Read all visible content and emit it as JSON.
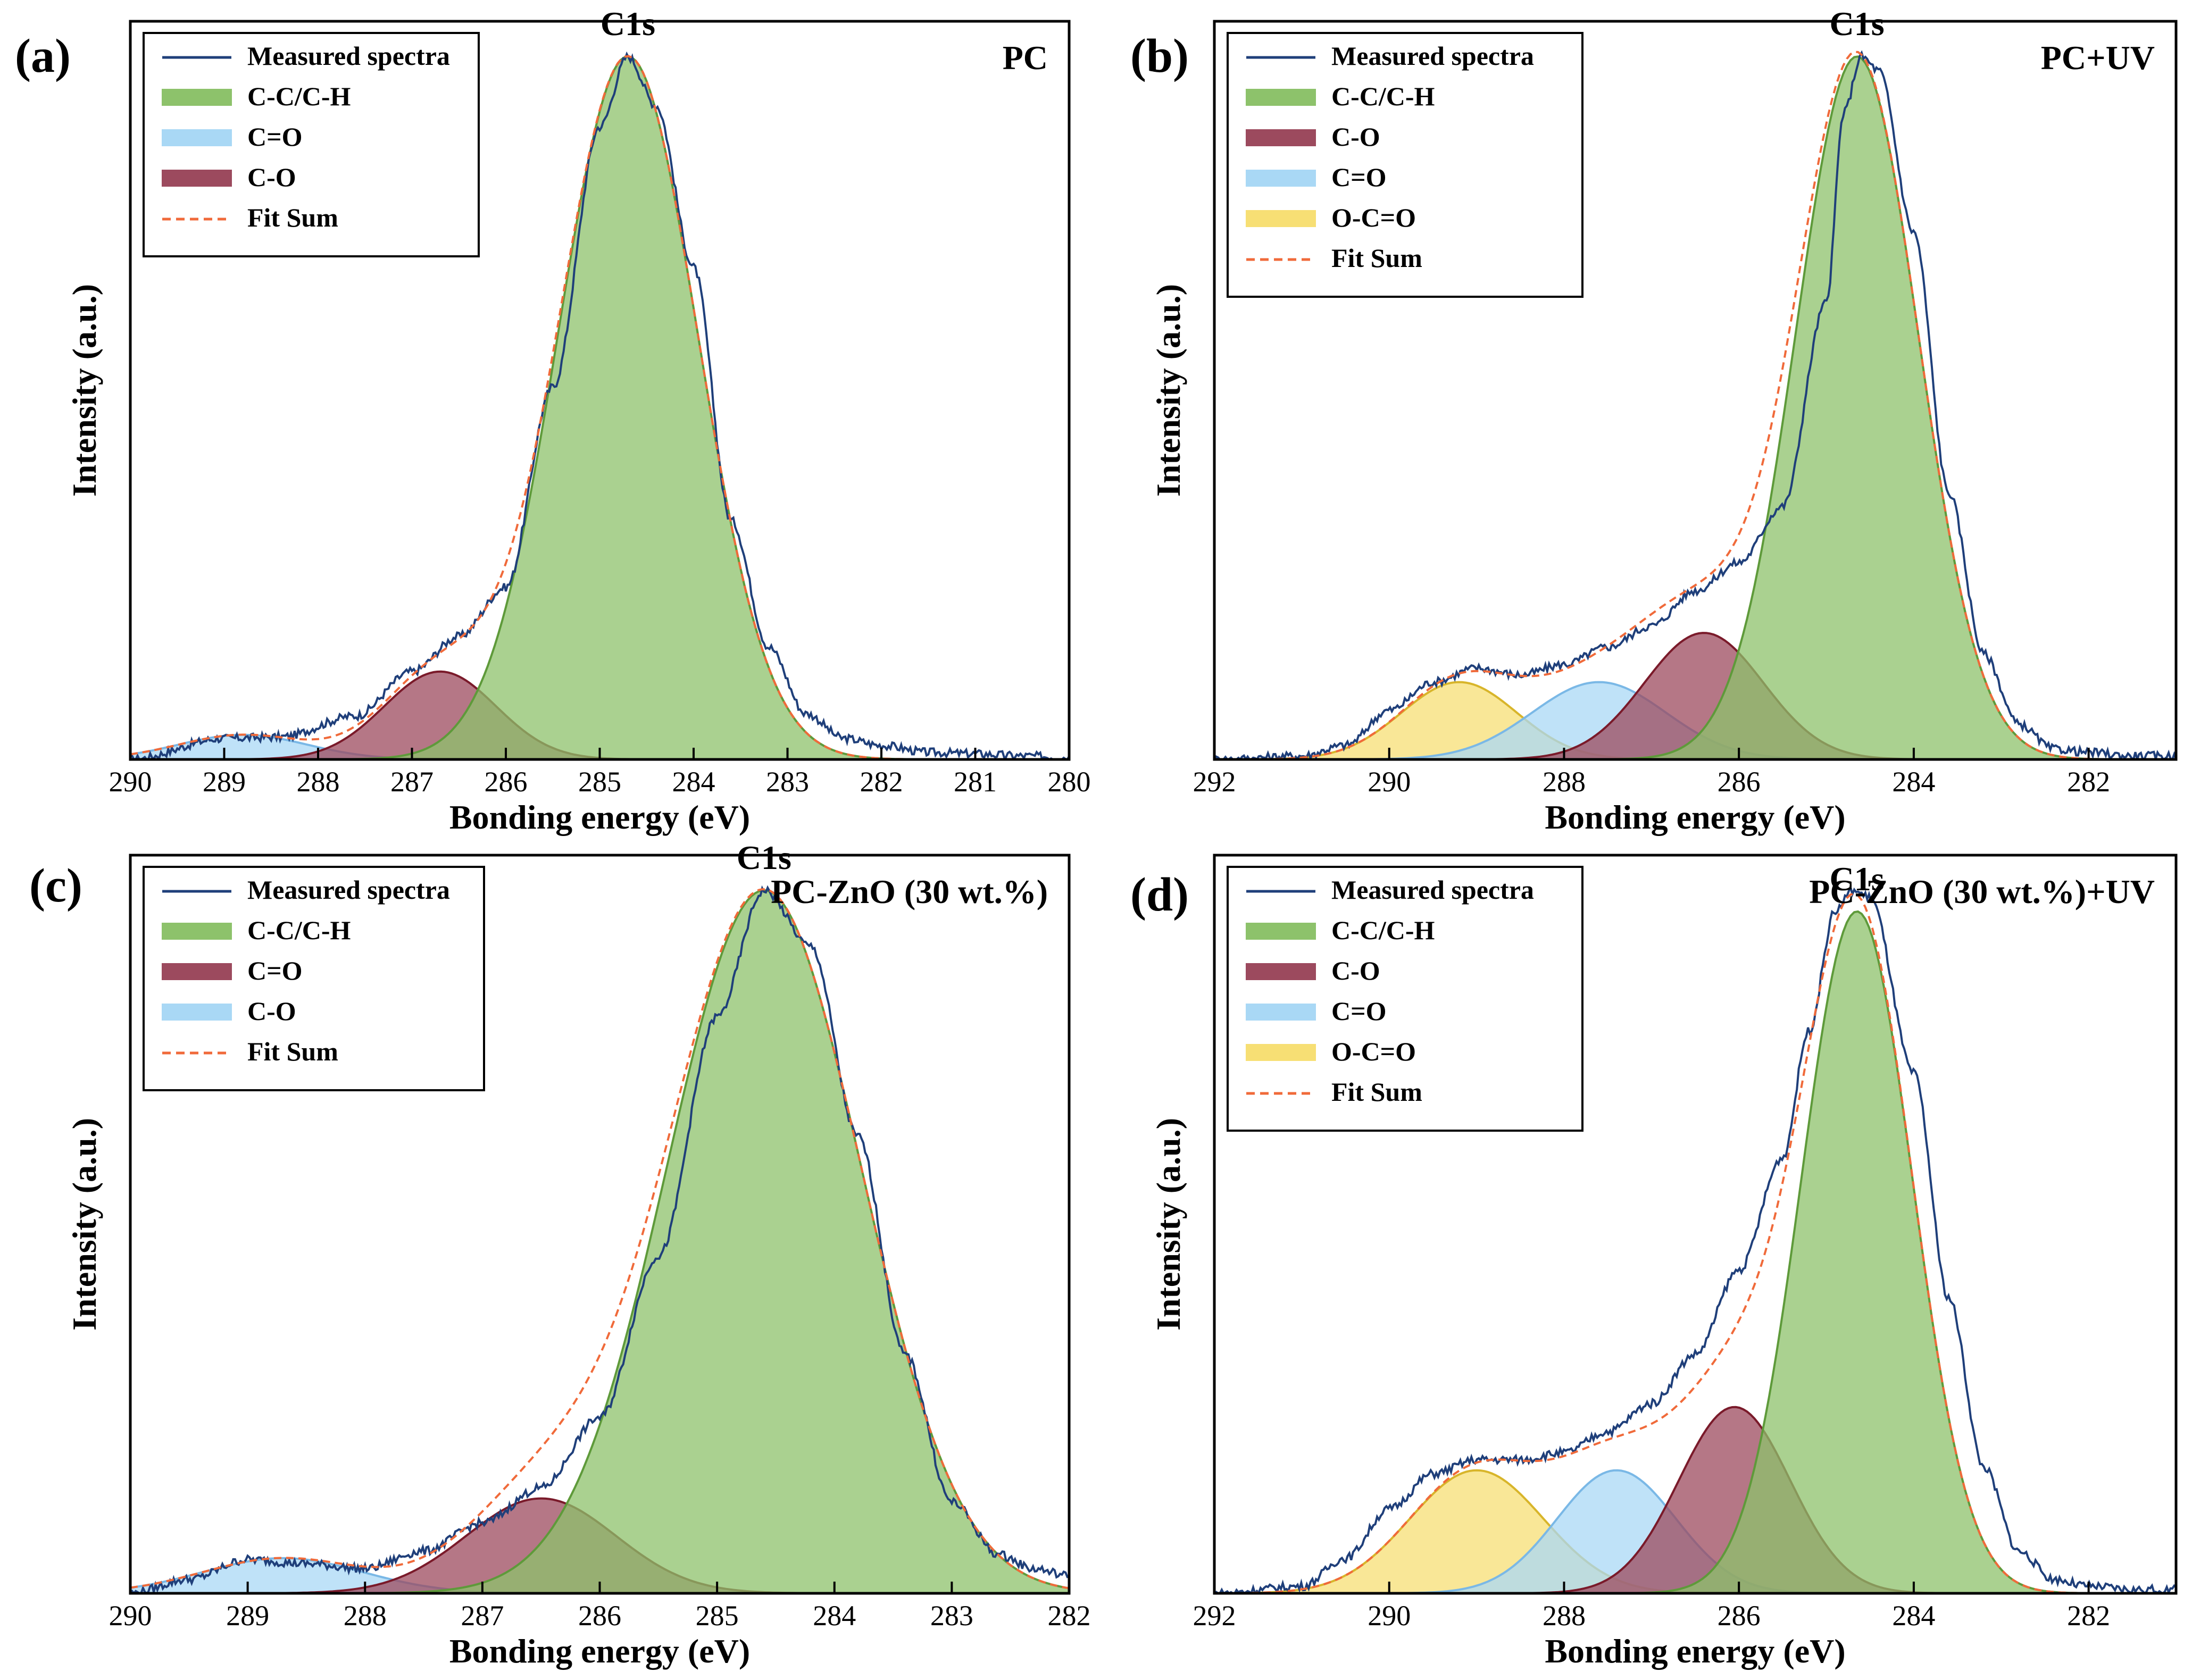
{
  "chart_data": [
    {
      "id": "a",
      "type": "line",
      "panel_letter": "(a)",
      "label": "PC",
      "peak_label": "C1s",
      "xlabel": "Bonding energy (eV)",
      "ylabel": "Intensity (a.u.)",
      "xlim": [
        290,
        280
      ],
      "ylim": [
        0,
        1.05
      ],
      "xticks": [
        290,
        289,
        288,
        287,
        286,
        285,
        284,
        283,
        282,
        281,
        280
      ],
      "legend": [
        {
          "label": "Measured spectra",
          "kind": "line",
          "color": "#1f3f7a"
        },
        {
          "label": "C-C/C-H",
          "kind": "area",
          "color": "#8dc26b"
        },
        {
          "label": "C=O",
          "kind": "area",
          "color": "#a9d8f5"
        },
        {
          "label": "C-O",
          "kind": "area",
          "color": "#9c4a5e"
        },
        {
          "label": "Fit Sum",
          "kind": "dashed",
          "color": "#f06a3a"
        }
      ],
      "peaks": [
        {
          "label": "C=O",
          "center": 288.8,
          "height": 0.035,
          "fwhm": 1.6,
          "fill": "#a9d8f5",
          "stroke": "#7ab8e6"
        },
        {
          "label": "C-O",
          "center": 286.7,
          "height": 0.125,
          "fwhm": 1.4,
          "fill": "#9c4a5e",
          "stroke": "#7a1a2a"
        },
        {
          "label": "C-C/C-H",
          "center": 284.7,
          "height": 1.0,
          "fwhm": 1.75,
          "fill": "#8dc26b",
          "stroke": "#5e9a3a"
        }
      ],
      "measured": [
        [
          290.0,
          0.0
        ],
        [
          289.0,
          0.03
        ],
        [
          288.4,
          0.032
        ],
        [
          287.6,
          0.062
        ],
        [
          287.0,
          0.125
        ],
        [
          286.5,
          0.175
        ],
        [
          286.0,
          0.245
        ],
        [
          285.5,
          0.53
        ],
        [
          285.0,
          0.9
        ],
        [
          284.7,
          1.0
        ],
        [
          284.4,
          0.93
        ],
        [
          284.0,
          0.7
        ],
        [
          283.6,
          0.34
        ],
        [
          283.2,
          0.16
        ],
        [
          282.8,
          0.065
        ],
        [
          282.4,
          0.03
        ],
        [
          282.0,
          0.02
        ],
        [
          281.5,
          0.01
        ],
        [
          281.0,
          0.008
        ],
        [
          280.5,
          0.005
        ],
        [
          280.0,
          0.003
        ]
      ]
    },
    {
      "id": "b",
      "type": "line",
      "panel_letter": "(b)",
      "label": "PC+UV",
      "peak_label": "C1s",
      "xlabel": "Bonding energy (eV)",
      "ylabel": "Intensity (a.u.)",
      "xlim": [
        292,
        281
      ],
      "ylim": [
        0,
        1.05
      ],
      "xticks": [
        292,
        290,
        288,
        286,
        284,
        282
      ],
      "legend": [
        {
          "label": "Measured spectra",
          "kind": "line",
          "color": "#1f3f7a"
        },
        {
          "label": "C-C/C-H",
          "kind": "area",
          "color": "#8dc26b"
        },
        {
          "label": "C-O",
          "kind": "area",
          "color": "#9c4a5e"
        },
        {
          "label": "C=O",
          "kind": "area",
          "color": "#a9d8f5"
        },
        {
          "label": "O-C=O",
          "kind": "area",
          "color": "#f7df74"
        },
        {
          "label": "Fit Sum",
          "kind": "dashed",
          "color": "#f06a3a"
        }
      ],
      "peaks": [
        {
          "label": "O-C=O",
          "center": 289.2,
          "height": 0.11,
          "fwhm": 1.55,
          "fill": "#f7df74",
          "stroke": "#d8b52a"
        },
        {
          "label": "C=O",
          "center": 287.6,
          "height": 0.11,
          "fwhm": 1.8,
          "fill": "#a9d8f5",
          "stroke": "#7ab8e6"
        },
        {
          "label": "C-O",
          "center": 286.4,
          "height": 0.18,
          "fwhm": 1.6,
          "fill": "#9c4a5e",
          "stroke": "#7a1a2a"
        },
        {
          "label": "C-C/C-H",
          "center": 284.65,
          "height": 1.0,
          "fwhm": 1.65,
          "fill": "#8dc26b",
          "stroke": "#5e9a3a"
        }
      ],
      "measured": [
        [
          292.0,
          0.0
        ],
        [
          291.0,
          0.005
        ],
        [
          290.5,
          0.02
        ],
        [
          290.0,
          0.07
        ],
        [
          289.5,
          0.11
        ],
        [
          289.0,
          0.13
        ],
        [
          288.5,
          0.12
        ],
        [
          288.0,
          0.135
        ],
        [
          287.5,
          0.16
        ],
        [
          287.0,
          0.19
        ],
        [
          286.5,
          0.24
        ],
        [
          286.0,
          0.28
        ],
        [
          285.5,
          0.36
        ],
        [
          285.0,
          0.65
        ],
        [
          284.8,
          0.92
        ],
        [
          284.6,
          1.0
        ],
        [
          284.4,
          0.98
        ],
        [
          284.0,
          0.75
        ],
        [
          283.6,
          0.38
        ],
        [
          283.2,
          0.15
        ],
        [
          282.8,
          0.05
        ],
        [
          282.4,
          0.015
        ],
        [
          282.0,
          0.01
        ],
        [
          281.5,
          0.005
        ],
        [
          281.0,
          0.005
        ]
      ]
    },
    {
      "id": "c",
      "type": "line",
      "panel_letter": "(c)",
      "label": "PC-ZnO (30 wt.%)",
      "peak_label": "C1s",
      "xlabel": "Bonding energy (eV)",
      "ylabel": "Intensity (a.u.)",
      "xlim": [
        290,
        282
      ],
      "ylim": [
        0,
        1.05
      ],
      "xticks": [
        290,
        289,
        288,
        287,
        286,
        285,
        284,
        283,
        282
      ],
      "legend": [
        {
          "label": "Measured spectra",
          "kind": "line",
          "color": "#1f3f7a"
        },
        {
          "label": "C-C/C-H",
          "kind": "area",
          "color": "#8dc26b"
        },
        {
          "label": "C=O",
          "kind": "area",
          "color": "#9c4a5e"
        },
        {
          "label": "C-O",
          "kind": "area",
          "color": "#a9d8f5"
        },
        {
          "label": "Fit Sum",
          "kind": "dashed",
          "color": "#f06a3a"
        }
      ],
      "peaks": [
        {
          "label": "C-O",
          "center": 288.7,
          "height": 0.05,
          "fwhm": 1.6,
          "fill": "#a9d8f5",
          "stroke": "#7ab8e6"
        },
        {
          "label": "C=O",
          "center": 286.5,
          "height": 0.135,
          "fwhm": 1.5,
          "fill": "#9c4a5e",
          "stroke": "#7a1a2a"
        },
        {
          "label": "C-C/C-H",
          "center": 284.6,
          "height": 1.0,
          "fwhm": 1.95,
          "fill": "#8dc26b",
          "stroke": "#5e9a3a"
        }
      ],
      "measured": [
        [
          290.0,
          0.0
        ],
        [
          289.5,
          0.02
        ],
        [
          289.0,
          0.048
        ],
        [
          288.5,
          0.042
        ],
        [
          288.0,
          0.035
        ],
        [
          287.5,
          0.06
        ],
        [
          287.0,
          0.1
        ],
        [
          286.5,
          0.15
        ],
        [
          286.0,
          0.25
        ],
        [
          285.5,
          0.48
        ],
        [
          285.0,
          0.82
        ],
        [
          284.6,
          1.0
        ],
        [
          284.2,
          0.92
        ],
        [
          283.8,
          0.65
        ],
        [
          283.4,
          0.34
        ],
        [
          283.0,
          0.13
        ],
        [
          282.6,
          0.055
        ],
        [
          282.3,
          0.035
        ],
        [
          282.0,
          0.025
        ]
      ]
    },
    {
      "id": "d",
      "type": "line",
      "panel_letter": "(d)",
      "label": "PC-ZnO (30 wt.%)+UV",
      "peak_label": "C1s",
      "xlabel": "Bonding energy (eV)",
      "ylabel": "Intensity (a.u.)",
      "xlim": [
        292,
        281
      ],
      "ylim": [
        0,
        1.05
      ],
      "xticks": [
        292,
        290,
        288,
        286,
        284,
        282
      ],
      "legend": [
        {
          "label": "Measured spectra",
          "kind": "line",
          "color": "#1f3f7a"
        },
        {
          "label": "C-C/C-H",
          "kind": "area",
          "color": "#8dc26b"
        },
        {
          "label": "C-O",
          "kind": "area",
          "color": "#9c4a5e"
        },
        {
          "label": "C=O",
          "kind": "area",
          "color": "#a9d8f5"
        },
        {
          "label": "O-C=O",
          "kind": "area",
          "color": "#f7df74"
        },
        {
          "label": "Fit Sum",
          "kind": "dashed",
          "color": "#f06a3a"
        }
      ],
      "peaks": [
        {
          "label": "O-C=O",
          "center": 289.0,
          "height": 0.175,
          "fwhm": 1.8,
          "fill": "#f7df74",
          "stroke": "#d8b52a"
        },
        {
          "label": "C=O",
          "center": 287.4,
          "height": 0.175,
          "fwhm": 1.6,
          "fill": "#a9d8f5",
          "stroke": "#7ab8e6"
        },
        {
          "label": "C-O",
          "center": 286.05,
          "height": 0.265,
          "fwhm": 1.5,
          "fill": "#9c4a5e",
          "stroke": "#7a1a2a"
        },
        {
          "label": "C-C/C-H",
          "center": 284.65,
          "height": 0.97,
          "fwhm": 1.5,
          "fill": "#8dc26b",
          "stroke": "#5e9a3a"
        }
      ],
      "measured": [
        [
          292.0,
          0.0
        ],
        [
          291.0,
          0.01
        ],
        [
          290.5,
          0.05
        ],
        [
          290.0,
          0.12
        ],
        [
          289.5,
          0.17
        ],
        [
          289.0,
          0.19
        ],
        [
          288.5,
          0.19
        ],
        [
          288.0,
          0.2
        ],
        [
          287.5,
          0.23
        ],
        [
          287.0,
          0.27
        ],
        [
          286.5,
          0.34
        ],
        [
          286.0,
          0.46
        ],
        [
          285.5,
          0.62
        ],
        [
          285.2,
          0.8
        ],
        [
          284.9,
          0.97
        ],
        [
          284.7,
          1.0
        ],
        [
          284.5,
          0.99
        ],
        [
          284.0,
          0.74
        ],
        [
          283.6,
          0.42
        ],
        [
          283.2,
          0.18
        ],
        [
          282.8,
          0.06
        ],
        [
          282.4,
          0.02
        ],
        [
          282.0,
          0.01
        ],
        [
          281.5,
          0.005
        ],
        [
          281.0,
          0.005
        ]
      ]
    }
  ]
}
